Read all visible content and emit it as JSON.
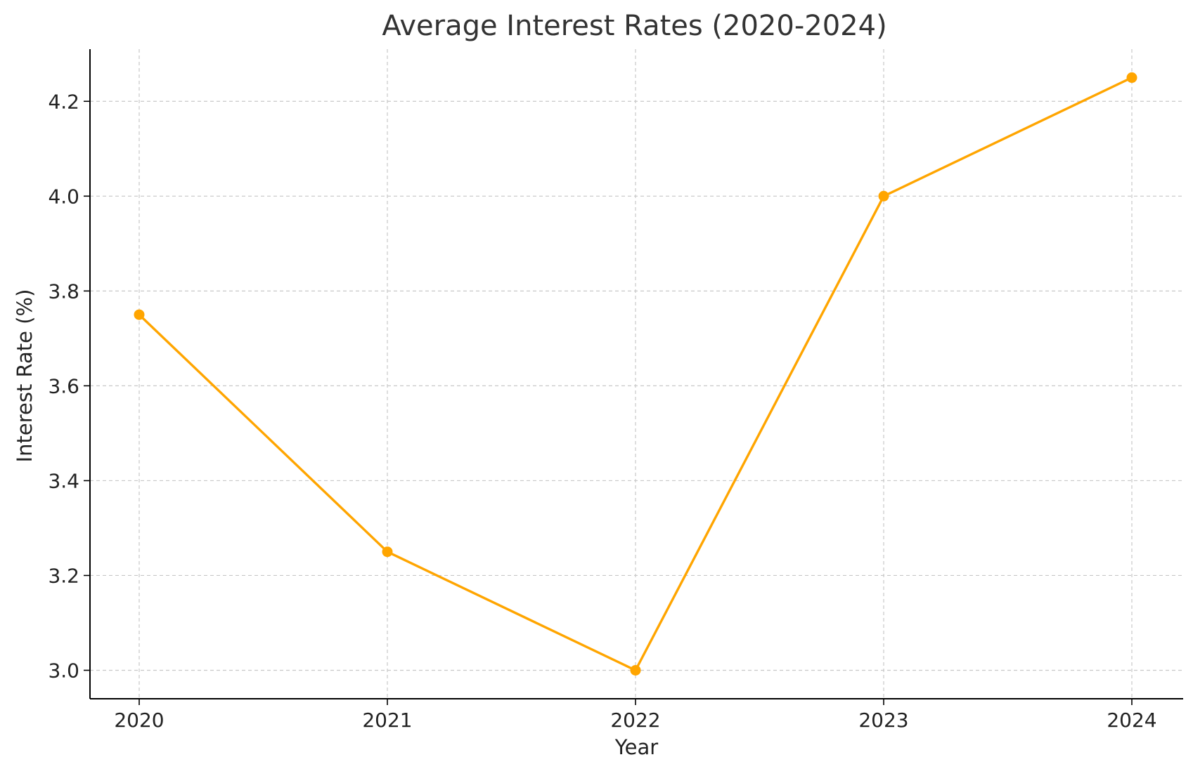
{
  "chart_data": {
    "type": "line",
    "title": "Average Interest Rates (2020-2024)",
    "xlabel": "Year",
    "ylabel": "Interest Rate (%)",
    "categories": [
      "2020",
      "2021",
      "2022",
      "2023",
      "2024"
    ],
    "series": [
      {
        "values": [
          3.75,
          3.25,
          3.0,
          4.0,
          4.25
        ],
        "color": "#FFA500",
        "marker": "circle"
      }
    ],
    "y_ticks": [
      "3.0",
      "3.2",
      "3.4",
      "3.6",
      "3.8",
      "4.0",
      "4.2"
    ],
    "ylim": [
      2.94,
      4.31
    ],
    "grid": true,
    "legend": "none",
    "colors": {
      "line": "#FFA500",
      "grid": "#c8c8c8",
      "axis": "#000000",
      "text": "#333333"
    }
  }
}
